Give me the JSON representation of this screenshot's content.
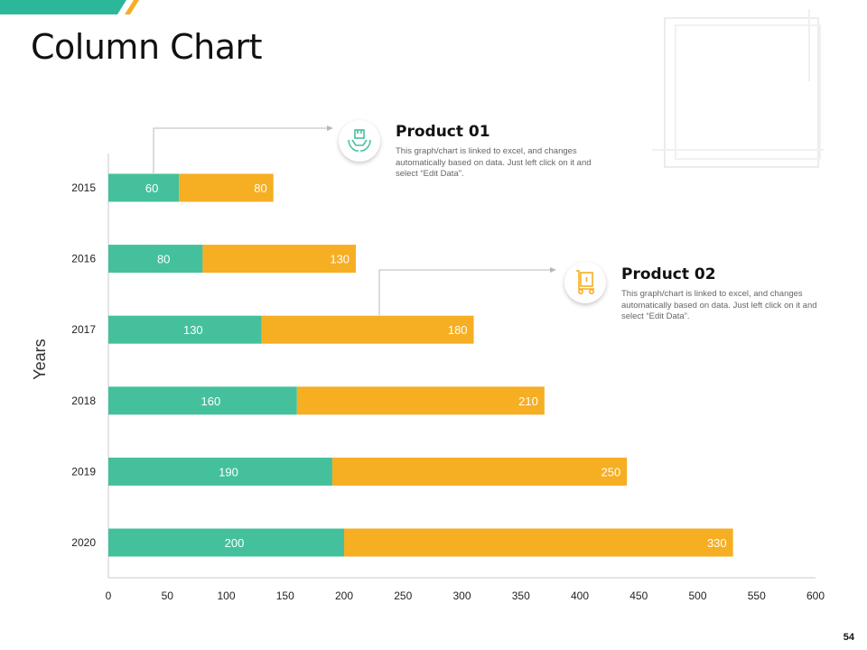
{
  "slide": {
    "title": "Column Chart",
    "page_number": "54"
  },
  "colors": {
    "product01": "#44C09D",
    "product02": "#F6AE23",
    "accent_green": "#2BB89A",
    "accent_yellow": "#F6AE23"
  },
  "callouts": [
    {
      "title": "Product 01",
      "description": "This graph/chart is linked to excel, and changes automatically based on data. Just left click on it and select “Edit Data”.",
      "icon": "hands-holding-box-icon"
    },
    {
      "title": "Product 02",
      "description": "This graph/chart is linked to excel, and changes automatically based on data. Just left click on it and select “Edit Data”.",
      "icon": "hand-truck-box-icon"
    }
  ],
  "chart_data": {
    "type": "bar",
    "orientation": "horizontal",
    "stacked": true,
    "title": "",
    "xlabel": "",
    "ylabel": "Years",
    "categories": [
      "2015",
      "2016",
      "2017",
      "2018",
      "2019",
      "2020"
    ],
    "series": [
      {
        "name": "Product 01",
        "values": [
          60,
          80,
          130,
          160,
          190,
          200
        ]
      },
      {
        "name": "Product 02",
        "values": [
          80,
          130,
          180,
          210,
          250,
          330
        ]
      }
    ],
    "xlim": [
      0,
      600
    ],
    "xticks": [
      0,
      50,
      100,
      150,
      200,
      250,
      300,
      350,
      400,
      450,
      500,
      550,
      600
    ],
    "grid": false,
    "legend": "none"
  }
}
